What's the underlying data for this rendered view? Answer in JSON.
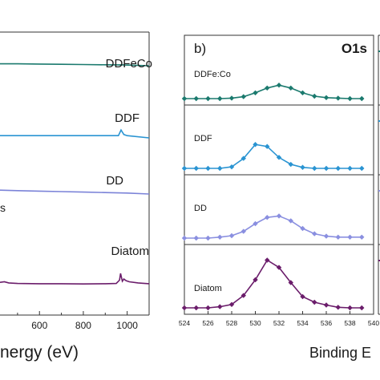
{
  "chart_data": [
    {
      "type": "line",
      "panel": "survey",
      "xlabel": "Binding Energy (eV)",
      "xlabel_visible": "nergy (eV)",
      "xlim": [
        420,
        1100
      ],
      "x_ticks": [
        "600",
        "800",
        "1000"
      ],
      "partial_label": "s",
      "series": [
        {
          "name": "DDFeCo",
          "color": "#1b7a6e",
          "x": [
            420,
            500,
            600,
            700,
            800,
            900,
            960,
            975,
            990,
            1100
          ],
          "y": [
            0.04,
            0.04,
            0.035,
            0.03,
            0.025,
            0.02,
            0.018,
            0.02,
            0.015,
            0.0
          ]
        },
        {
          "name": "DDF",
          "color": "#2a94d2",
          "x": [
            420,
            500,
            600,
            700,
            800,
            900,
            960,
            972,
            985,
            1000,
            1100
          ],
          "y": [
            0.02,
            0.02,
            0.02,
            0.02,
            0.02,
            0.02,
            0.02,
            0.07,
            0.03,
            0.02,
            0.0
          ]
        },
        {
          "name": "DD",
          "color": "#7b83d8",
          "x": [
            420,
            500,
            600,
            700,
            800,
            900,
            1000,
            1100
          ],
          "y": [
            0.08,
            0.07,
            0.06,
            0.05,
            0.04,
            0.03,
            0.02,
            0.0
          ]
        },
        {
          "name": "Diatom",
          "color": "#6b1d6b",
          "x": [
            420,
            440,
            460,
            500,
            600,
            700,
            800,
            900,
            950,
            965,
            970,
            978,
            985,
            995,
            1010,
            1050,
            1100
          ],
          "y": [
            0.04,
            0.05,
            0.03,
            0.02,
            0.015,
            0.015,
            0.012,
            0.015,
            0.02,
            0.08,
            0.2,
            0.06,
            0.1,
            0.07,
            0.05,
            0.03,
            0.015
          ]
        }
      ]
    },
    {
      "type": "line",
      "panel_label": "b)",
      "title": "O1s",
      "xlabel": "Binding Energy (eV)",
      "xlabel_visible": "Binding E",
      "xlim": [
        524,
        540
      ],
      "x_ticks": [
        "524",
        "526",
        "528",
        "530",
        "532",
        "534",
        "536",
        "538",
        "540"
      ],
      "series": [
        {
          "name": "DDFe:Co",
          "color": "#1b7a6e",
          "x": [
            524,
            525,
            526,
            527,
            528,
            529,
            530,
            531,
            532,
            533,
            534,
            535,
            536,
            537,
            538,
            539
          ],
          "y": [
            0.0,
            0.0,
            0.0,
            0.0,
            0.01,
            0.04,
            0.12,
            0.22,
            0.28,
            0.22,
            0.12,
            0.05,
            0.02,
            0.01,
            0.0,
            0.0
          ]
        },
        {
          "name": "DDF",
          "color": "#2a94d2",
          "x": [
            524,
            525,
            526,
            527,
            528,
            529,
            530,
            531,
            532,
            533,
            534,
            535,
            536,
            537,
            538,
            539
          ],
          "y": [
            0.0,
            0.0,
            0.0,
            0.0,
            0.03,
            0.2,
            0.48,
            0.44,
            0.22,
            0.08,
            0.02,
            0.0,
            0.0,
            0.0,
            0.0,
            0.0
          ]
        },
        {
          "name": "DD",
          "color": "#8a8fe0",
          "x": [
            524,
            525,
            526,
            527,
            528,
            529,
            530,
            531,
            532,
            533,
            534,
            535,
            536,
            537,
            538,
            539
          ],
          "y": [
            0.0,
            0.0,
            0.0,
            0.02,
            0.05,
            0.14,
            0.3,
            0.43,
            0.46,
            0.36,
            0.2,
            0.09,
            0.04,
            0.02,
            0.02,
            0.02
          ]
        },
        {
          "name": "Diatom",
          "color": "#6b1d6b",
          "x": [
            524,
            525,
            526,
            527,
            528,
            529,
            530,
            531,
            532,
            533,
            534,
            535,
            536,
            537,
            538,
            539
          ],
          "y": [
            0.0,
            0.0,
            0.0,
            0.02,
            0.06,
            0.22,
            0.5,
            0.85,
            0.72,
            0.45,
            0.2,
            0.1,
            0.05,
            0.01,
            0.0,
            0.0
          ]
        }
      ]
    }
  ]
}
